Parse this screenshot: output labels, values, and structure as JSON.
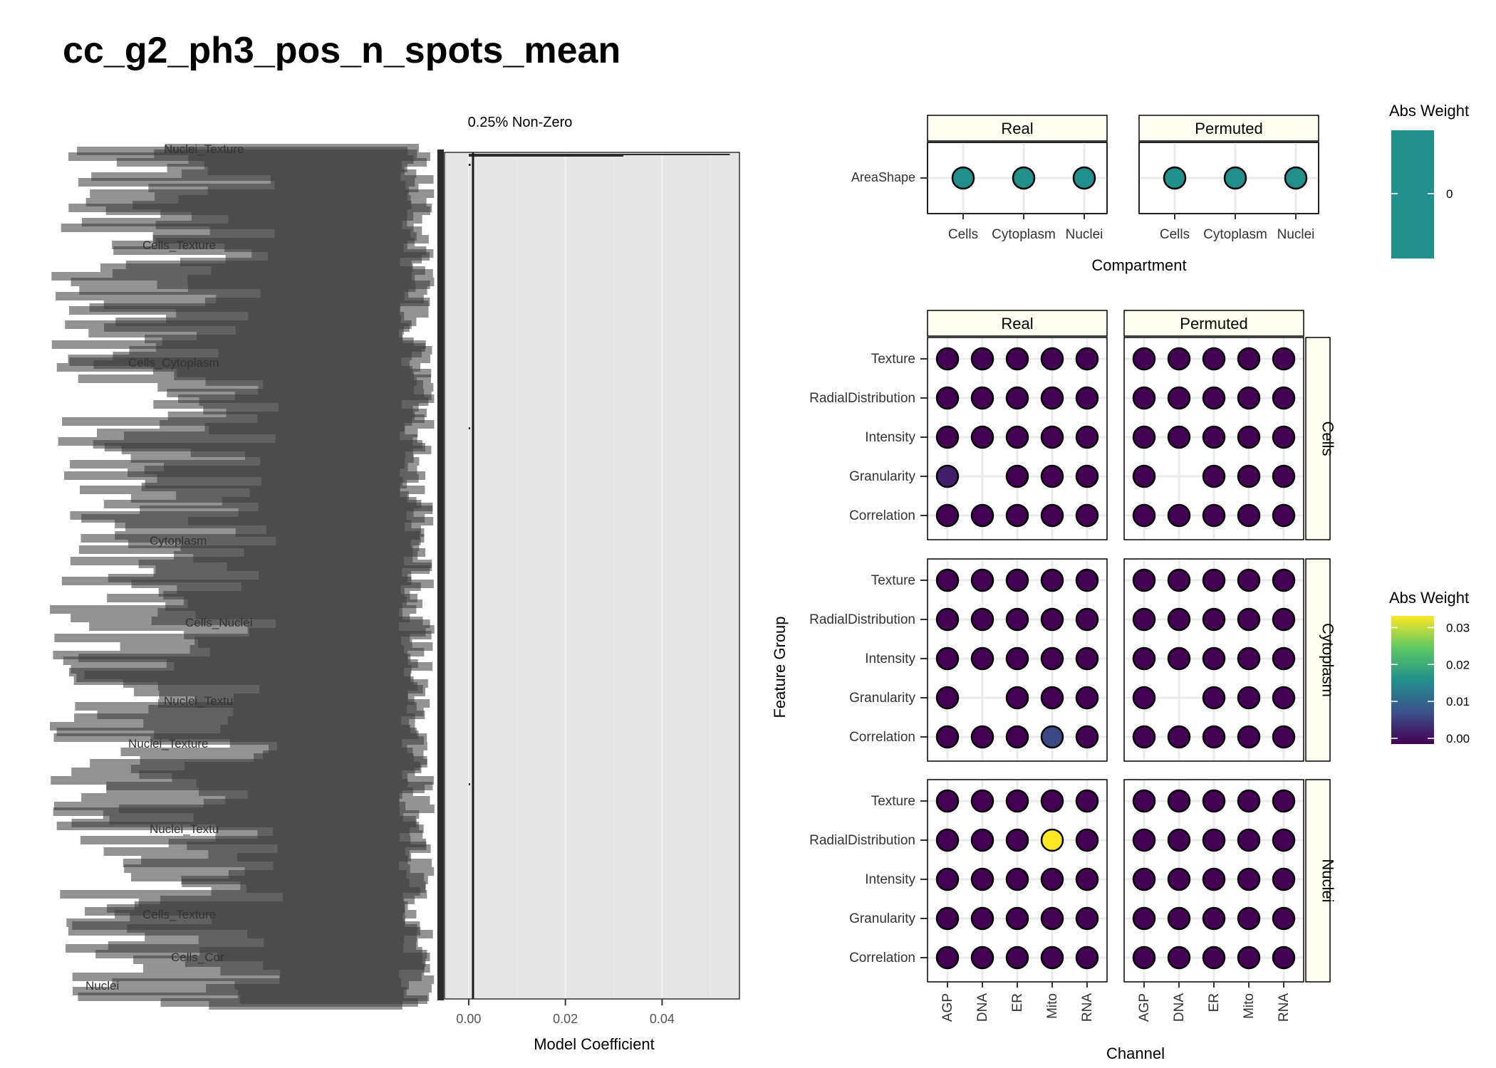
{
  "title": "cc_g2_ph3_pos_n_spots_mean",
  "chart_data": [
    {
      "type": "bar",
      "subtitle": "0.25% Non-Zero",
      "xlabel": "Model Coefficient",
      "x_ticks": [
        "0.00",
        "0.02",
        "0.04"
      ],
      "xlim": [
        -0.005,
        0.056
      ],
      "note": "Horizontal bar chart of feature coefficients; thousands of overlapping feature-name tick labels (illegible). One dominant bar near 0.054, a few tiny bars near 0.",
      "visible_labels": [
        "Nuclei_Texture",
        "Cells_Texture",
        "Cells_Cytoplasm",
        "Cytoplasm",
        "Cells_Nuclei",
        "Nuclei_Textu",
        "Nuclei_Texture",
        "Nuclei_Textu",
        "Cells_Texture",
        "Cells_Cor",
        "Nuclei"
      ],
      "bars": [
        {
          "value": 0.054
        },
        {
          "value": 0.032
        },
        {
          "value": 0.0004
        },
        {
          "value": 0.0003
        },
        {
          "value": 0.0002
        }
      ]
    },
    {
      "type": "scatter",
      "panel": "areashape",
      "facets": [
        "Real",
        "Permuted"
      ],
      "x_categories": [
        "Cells",
        "Cytoplasm",
        "Nuclei"
      ],
      "y_categories": [
        "AreaShape"
      ],
      "xlabel": "Compartment",
      "legend": {
        "title": "Abs Weight",
        "ticks": [
          "0"
        ],
        "color": "#21908c"
      },
      "points": {
        "Real": [
          {
            "x": "Cells",
            "y": "AreaShape",
            "value": 0
          },
          {
            "x": "Cytoplasm",
            "y": "AreaShape",
            "value": 0
          },
          {
            "x": "Nuclei",
            "y": "AreaShape",
            "value": 0
          }
        ],
        "Permuted": [
          {
            "x": "Cells",
            "y": "AreaShape",
            "value": 0
          },
          {
            "x": "Cytoplasm",
            "y": "AreaShape",
            "value": 0
          },
          {
            "x": "Nuclei",
            "y": "AreaShape",
            "value": 0
          }
        ]
      }
    },
    {
      "type": "scatter",
      "panel": "channel-grid",
      "col_facets": [
        "Real",
        "Permuted"
      ],
      "row_facets": [
        "Cells",
        "Cytoplasm",
        "Nuclei"
      ],
      "x_categories": [
        "AGP",
        "DNA",
        "ER",
        "Mito",
        "RNA"
      ],
      "y_categories": [
        "Correlation",
        "Granularity",
        "Intensity",
        "RadialDistribution",
        "Texture"
      ],
      "xlabel": "Channel",
      "ylabel": "Feature Group",
      "legend": {
        "title": "Abs Weight",
        "ticks": [
          "0.00",
          "0.01",
          "0.02",
          "0.03"
        ],
        "range": [
          0,
          0.032
        ]
      },
      "missing": [
        {
          "row": "Cells",
          "x": "DNA",
          "y": "Granularity"
        },
        {
          "row": "Cytoplasm",
          "x": "DNA",
          "y": "Granularity"
        }
      ],
      "highlights": [
        {
          "col": "Real",
          "row": "Cells",
          "x": "AGP",
          "y": "Granularity",
          "value": 0.003
        },
        {
          "col": "Real",
          "row": "Cytoplasm",
          "x": "Mito",
          "y": "Correlation",
          "value": 0.007
        },
        {
          "col": "Real",
          "row": "Nuclei",
          "x": "Mito",
          "y": "RadialDistribution",
          "value": 0.032
        }
      ],
      "default_value": 0
    }
  ],
  "colors": {
    "strip_fill": "#fffff2",
    "panel_bg": "#ffffff",
    "grid": "#ebebeb",
    "bar_panel_bg": "#e5e5e5",
    "bar_fill": "#2b2b2b",
    "label_text": "#3a3a3a",
    "viridis": [
      "#440154",
      "#3b528b",
      "#21908c",
      "#5dc963",
      "#fde725"
    ]
  }
}
